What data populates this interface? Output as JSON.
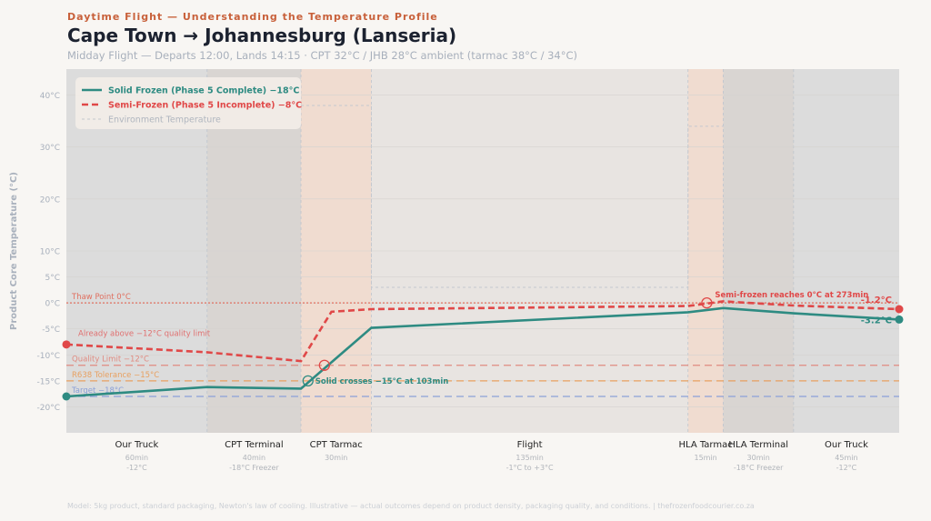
{
  "header": {
    "kicker": "Daytime Flight — Understanding the Temperature Profile",
    "title": "Cape Town → Johannesburg (Lanseria)",
    "subtitle": "Midday Flight — Departs 12:00, Lands 14:15 · CPT 32°C / JHB 28°C ambient (tarmac 38°C / 34°C)"
  },
  "footer": "Model: 5kg product, standard packaging, Newton's law of cooling. Illustrative — actual outcomes depend on product density, packaging quality, and conditions. | thefrozenfoodcourier.co.za",
  "chart_data": {
    "type": "line",
    "ylabel": "Product Core Temperature (°C)",
    "ylim": [
      -25,
      45
    ],
    "xlim": [
      0,
      355
    ],
    "yticks": [
      -20,
      -15,
      -10,
      -5,
      0,
      5,
      10,
      20,
      30,
      40
    ],
    "ytick_labels": [
      "-20°C",
      "-15°C",
      "-10°C",
      "-5°C",
      "0°C",
      "5°C",
      "10°C",
      "20°C",
      "30°C",
      "40°C"
    ],
    "grid": true,
    "legend_position": "top-left",
    "phases": [
      {
        "name": "Our Truck",
        "duration": "60min",
        "env": "-12°C",
        "start": 0,
        "end": 60,
        "color": "#dcdcdc"
      },
      {
        "name": "CPT Terminal",
        "duration": "40min",
        "env": "-18°C Freezer",
        "start": 60,
        "end": 100,
        "color": "#d9d5d2"
      },
      {
        "name": "CPT Tarmac",
        "duration": "30min",
        "env": "",
        "start": 100,
        "end": 130,
        "color": "#f0dcd0"
      },
      {
        "name": "Flight",
        "duration": "135min",
        "env": "-1°C to +3°C",
        "start": 130,
        "end": 265,
        "color": "#e8e4e1"
      },
      {
        "name": "HLA Tarmac",
        "duration": "15min",
        "env": "",
        "start": 265,
        "end": 280,
        "color": "#f0dcd0"
      },
      {
        "name": "HLA Terminal",
        "duration": "30min",
        "env": "-18°C Freezer",
        "start": 280,
        "end": 310,
        "color": "#d9d5d2"
      },
      {
        "name": "Our Truck",
        "duration": "45min",
        "env": "-12°C",
        "start": 310,
        "end": 355,
        "color": "#dcdcdc"
      }
    ],
    "series": [
      {
        "name": "Solid Frozen (Phase 5 Complete) −18°C",
        "color": "#2e8b82",
        "style": "solid",
        "x": [
          0,
          60,
          100,
          130,
          265,
          280,
          310,
          355
        ],
        "y": [
          -18,
          -16.2,
          -16.5,
          -4.8,
          -1.8,
          -1,
          -2,
          -3.2
        ],
        "end_label": "-3.2°C"
      },
      {
        "name": "Semi-Frozen (Phase 5 Incomplete) −8°C",
        "color": "#e04848",
        "style": "dashed",
        "x": [
          0,
          60,
          100,
          113,
          130,
          265,
          280,
          310,
          355
        ],
        "y": [
          -8,
          -9.5,
          -11.2,
          -1.7,
          -1.2,
          -0.6,
          0.3,
          -0.5,
          -1.2
        ],
        "end_label": "-1.2°C"
      },
      {
        "name": "Environment Temperature",
        "color": "#c4c8ce",
        "style": "dotted",
        "x": [
          100,
          130,
          130,
          265,
          265,
          280
        ],
        "y": [
          38,
          38,
          3,
          3,
          34,
          34
        ]
      }
    ],
    "reference_lines": [
      {
        "label": "Thaw Point 0°C",
        "y": 0,
        "color": "#e07060",
        "style": "dotted"
      },
      {
        "label": "Quality Limit −12°C",
        "y": -12,
        "color": "#e08a80",
        "style": "dashed"
      },
      {
        "label": "R638 Tolerance −15°C",
        "y": -15,
        "color": "#e8a060",
        "style": "dashed"
      },
      {
        "label": "Target −18°C",
        "y": -18,
        "color": "#8aa0d8",
        "style": "dashed"
      }
    ],
    "annotations": [
      {
        "text": "Already above −12°C quality limit",
        "x": 5,
        "y": -5.8,
        "color": "#e07070"
      },
      {
        "text": "Solid crosses −15°C at 103min",
        "x": 103,
        "y": -15,
        "color": "#2e8b82"
      },
      {
        "text": "Semi-frozen reaches 0°C at 273min",
        "x": 273,
        "y": 0,
        "color": "#e04848"
      }
    ],
    "markers": [
      {
        "x": 103,
        "y": -15,
        "color": "#2e8b82"
      },
      {
        "x": 110,
        "y": -12,
        "color": "#e04848"
      },
      {
        "x": 273,
        "y": 0,
        "color": "#e04848"
      }
    ]
  }
}
